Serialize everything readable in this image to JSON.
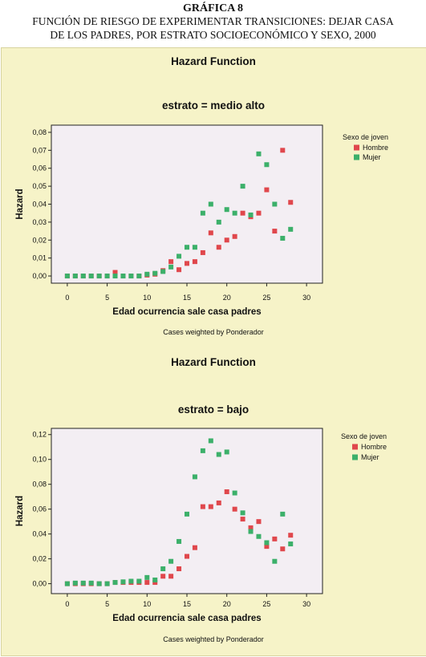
{
  "heading": {
    "number": "GRÁFICA 8",
    "title_line1": "FUNCIÓN DE RIESGO DE EXPERIMENTAR TRANSICIONES: DEJAR CASA",
    "title_line2": "DE LOS PADRES, POR ESTRATO SOCIOECONÓMICO Y SEXO, 2000"
  },
  "colors": {
    "panel_background": "#f6f3c8",
    "plot_background": "#f3eef3",
    "hombre": "#e0474c",
    "mujer": "#3cb06a"
  },
  "chart_data": [
    {
      "type": "scatter",
      "title": "Hazard Function",
      "subtitle": "estrato = medio alto",
      "xlabel": "Edad ocurrencia sale casa padres",
      "ylabel": "Hazard",
      "footnote": "Cases weighted by Ponderador",
      "legend_title": "Sexo de joven",
      "legend_position": "right",
      "xlim": [
        -2,
        32
      ],
      "ylim": [
        -0.004,
        0.084
      ],
      "xticks": [
        0,
        5,
        10,
        15,
        20,
        25,
        30
      ],
      "xtick_labels": [
        "0",
        "5",
        "10",
        "15",
        "20",
        "25",
        "30"
      ],
      "yticks": [
        0,
        0.01,
        0.02,
        0.03,
        0.04,
        0.05,
        0.06,
        0.07,
        0.08
      ],
      "ytick_labels": [
        "0,00",
        "0,01",
        "0,02",
        "0,03",
        "0,04",
        "0,05",
        "0,06",
        "0,07",
        "0,08"
      ],
      "grid": false,
      "series": [
        {
          "name": "Hombre",
          "points": [
            [
              0,
              0
            ],
            [
              1,
              0
            ],
            [
              2,
              0
            ],
            [
              3,
              0
            ],
            [
              4,
              0
            ],
            [
              5,
              0
            ],
            [
              6,
              0.002
            ],
            [
              7,
              0
            ],
            [
              8,
              0
            ],
            [
              9,
              0
            ],
            [
              10,
              0.0005
            ],
            [
              11,
              0.001
            ],
            [
              12,
              0.003
            ],
            [
              13,
              0.008
            ],
            [
              14,
              0.0035
            ],
            [
              15,
              0.007
            ],
            [
              16,
              0.008
            ],
            [
              17,
              0.013
            ],
            [
              18,
              0.024
            ],
            [
              19,
              0.016
            ],
            [
              20,
              0.02
            ],
            [
              21,
              0.022
            ],
            [
              22,
              0.035
            ],
            [
              23,
              0.033
            ],
            [
              24,
              0.035
            ],
            [
              25,
              0.048
            ],
            [
              26,
              0.025
            ],
            [
              27,
              0.07
            ],
            [
              28,
              0.041
            ]
          ]
        },
        {
          "name": "Mujer",
          "points": [
            [
              0,
              0
            ],
            [
              1,
              0
            ],
            [
              2,
              0
            ],
            [
              3,
              0
            ],
            [
              4,
              0
            ],
            [
              5,
              0
            ],
            [
              6,
              0
            ],
            [
              7,
              0
            ],
            [
              8,
              0
            ],
            [
              9,
              0
            ],
            [
              10,
              0.001
            ],
            [
              11,
              0.0015
            ],
            [
              12,
              0.0025
            ],
            [
              13,
              0.005
            ],
            [
              14,
              0.011
            ],
            [
              15,
              0.016
            ],
            [
              16,
              0.016
            ],
            [
              17,
              0.035
            ],
            [
              18,
              0.04
            ],
            [
              19,
              0.03
            ],
            [
              20,
              0.037
            ],
            [
              21,
              0.035
            ],
            [
              22,
              0.05
            ],
            [
              23,
              0.034
            ],
            [
              24,
              0.068
            ],
            [
              25,
              0.062
            ],
            [
              26,
              0.04
            ],
            [
              27,
              0.021
            ],
            [
              28,
              0.026
            ]
          ]
        }
      ]
    },
    {
      "type": "scatter",
      "title": "Hazard Function",
      "subtitle": "estrato = bajo",
      "xlabel": "Edad ocurrencia sale casa padres",
      "ylabel": "Hazard",
      "footnote": "Cases weighted by Ponderador",
      "legend_title": "Sexo de joven",
      "legend_position": "right",
      "xlim": [
        -2,
        32
      ],
      "ylim": [
        -0.008,
        0.125
      ],
      "xticks": [
        0,
        5,
        10,
        15,
        20,
        25,
        30
      ],
      "xtick_labels": [
        "0",
        "5",
        "10",
        "15",
        "20",
        "25",
        "30"
      ],
      "yticks": [
        0,
        0.02,
        0.04,
        0.06,
        0.08,
        0.1,
        0.12
      ],
      "ytick_labels": [
        "0,00",
        "0,02",
        "0,04",
        "0,06",
        "0,08",
        "0,10",
        "0,12"
      ],
      "grid": false,
      "series": [
        {
          "name": "Hombre",
          "points": [
            [
              0,
              0
            ],
            [
              1,
              0
            ],
            [
              2,
              0
            ],
            [
              3,
              0
            ],
            [
              4,
              0
            ],
            [
              5,
              0
            ],
            [
              6,
              0.001
            ],
            [
              7,
              0.001
            ],
            [
              8,
              0.001
            ],
            [
              9,
              0.001
            ],
            [
              10,
              0.001
            ],
            [
              11,
              0.001
            ],
            [
              12,
              0.006
            ],
            [
              13,
              0.006
            ],
            [
              14,
              0.012
            ],
            [
              15,
              0.022
            ],
            [
              16,
              0.029
            ],
            [
              17,
              0.062
            ],
            [
              18,
              0.062
            ],
            [
              19,
              0.065
            ],
            [
              20,
              0.074
            ],
            [
              21,
              0.06
            ],
            [
              22,
              0.052
            ],
            [
              23,
              0.045
            ],
            [
              24,
              0.05
            ],
            [
              25,
              0.03
            ],
            [
              26,
              0.036
            ],
            [
              27,
              0.028
            ],
            [
              28,
              0.039
            ]
          ]
        },
        {
          "name": "Mujer",
          "points": [
            [
              0,
              0
            ],
            [
              1,
              0.0005
            ],
            [
              2,
              0.0005
            ],
            [
              3,
              0.0005
            ],
            [
              4,
              0
            ],
            [
              5,
              0
            ],
            [
              6,
              0.001
            ],
            [
              7,
              0.0015
            ],
            [
              8,
              0.002
            ],
            [
              9,
              0.002
            ],
            [
              10,
              0.005
            ],
            [
              11,
              0.003
            ],
            [
              12,
              0.012
            ],
            [
              13,
              0.018
            ],
            [
              14,
              0.034
            ],
            [
              15,
              0.056
            ],
            [
              16,
              0.086
            ],
            [
              17,
              0.107
            ],
            [
              18,
              0.115
            ],
            [
              19,
              0.104
            ],
            [
              20,
              0.106
            ],
            [
              21,
              0.073
            ],
            [
              22,
              0.057
            ],
            [
              23,
              0.042
            ],
            [
              24,
              0.038
            ],
            [
              25,
              0.033
            ],
            [
              26,
              0.018
            ],
            [
              27,
              0.056
            ],
            [
              28,
              0.032
            ]
          ]
        }
      ]
    }
  ]
}
